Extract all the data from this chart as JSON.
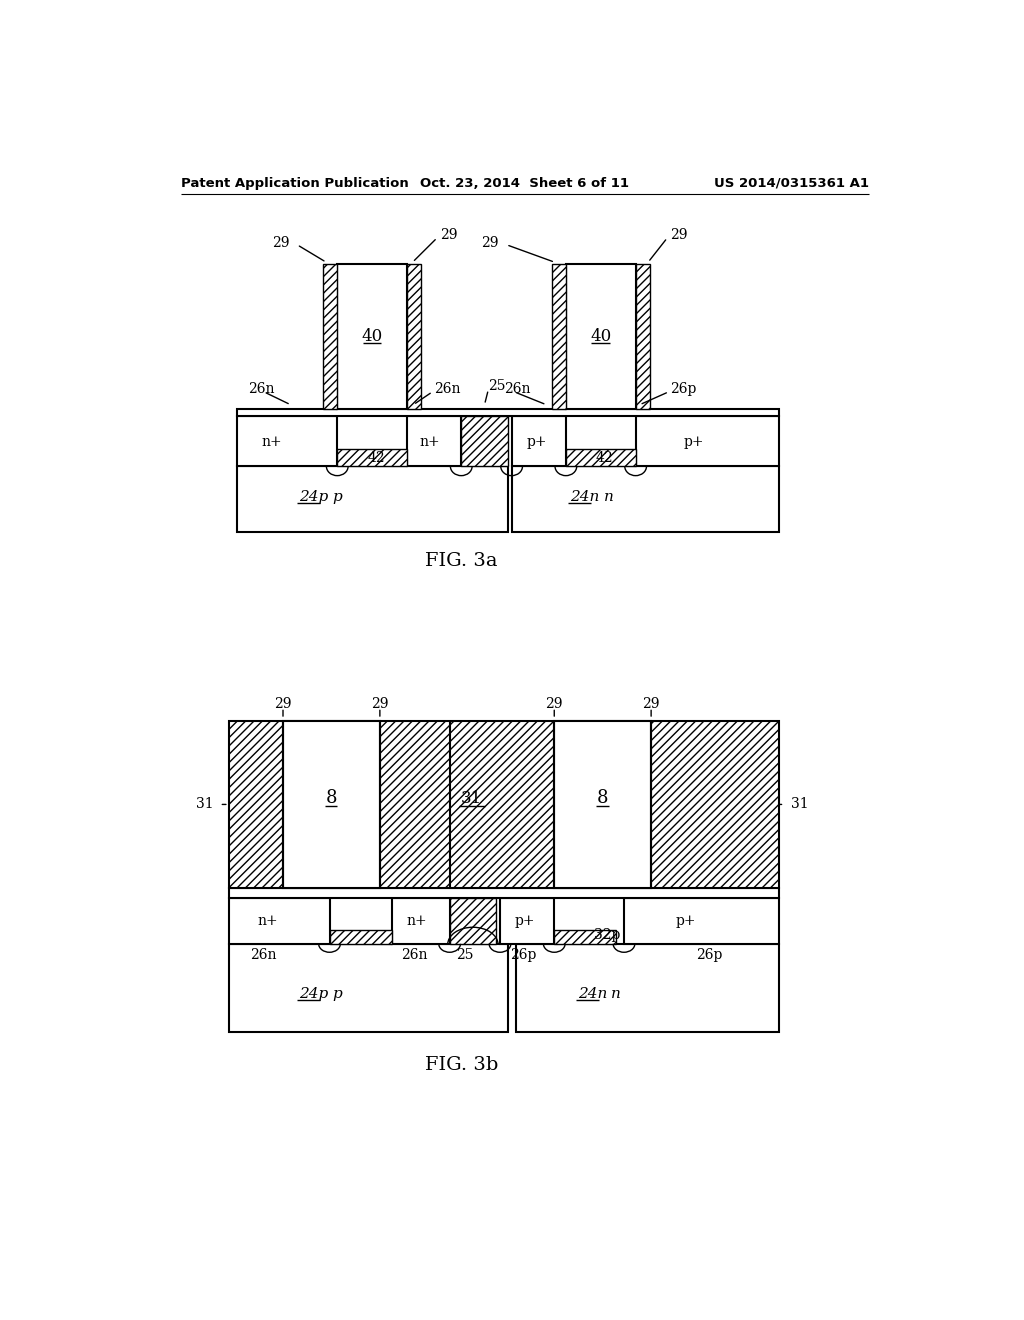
{
  "header_left": "Patent Application Publication",
  "header_mid": "Oct. 23, 2014  Sheet 6 of 11",
  "header_right": "US 2014/0315361 A1",
  "fig3a_label": "FIG. 3a",
  "fig3b_label": "FIG. 3b",
  "bg_color": "#ffffff",
  "line_color": "#000000"
}
